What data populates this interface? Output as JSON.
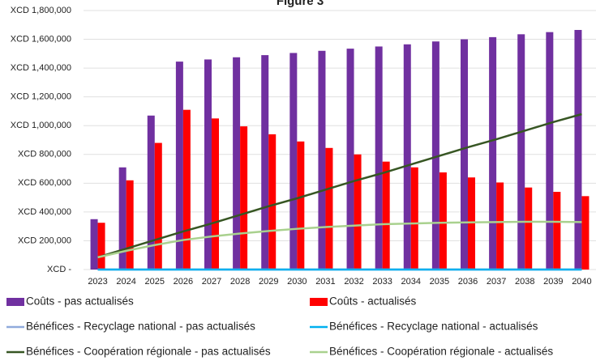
{
  "chart_data": {
    "type": "bar",
    "title": "Figure 3",
    "categories": [
      "2023",
      "2024",
      "2025",
      "2026",
      "2027",
      "2028",
      "2029",
      "2030",
      "2031",
      "2032",
      "2033",
      "2034",
      "2035",
      "2036",
      "2037",
      "2038",
      "2039",
      "2040"
    ],
    "ylim": [
      0,
      1800000
    ],
    "yticks": [
      {
        "value": 0,
        "label": "XCD -"
      },
      {
        "value": 200000,
        "label": "XCD 200,000"
      },
      {
        "value": 400000,
        "label": "XCD 400,000"
      },
      {
        "value": 600000,
        "label": "XCD 600,000"
      },
      {
        "value": 800000,
        "label": "XCD 800,000"
      },
      {
        "value": 1000000,
        "label": "XCD 1,000,000"
      },
      {
        "value": 1200000,
        "label": "XCD 1,200,000"
      },
      {
        "value": 1400000,
        "label": "XCD 1,400,000"
      },
      {
        "value": 1600000,
        "label": "XCD 1,600,000"
      },
      {
        "value": 1800000,
        "label": "XCD 1,800,000"
      }
    ],
    "grid": true,
    "series": [
      {
        "name": "Coûts - pas actualisés",
        "type": "bar",
        "color": "#7030a0",
        "values": [
          350000,
          710000,
          1070000,
          1445000,
          1460000,
          1475000,
          1490000,
          1505000,
          1520000,
          1535000,
          1550000,
          1565000,
          1585000,
          1600000,
          1615000,
          1635000,
          1650000,
          1665000
        ]
      },
      {
        "name": "Coûts - actualisés",
        "type": "bar",
        "color": "#ff0000",
        "values": [
          325000,
          620000,
          880000,
          1110000,
          1050000,
          995000,
          940000,
          890000,
          845000,
          800000,
          750000,
          710000,
          675000,
          640000,
          605000,
          570000,
          540000,
          510000
        ]
      },
      {
        "name": "Bénéfices - Recyclage national - pas actualisés",
        "type": "line",
        "color": "#8faadc",
        "values": [
          0,
          0,
          0,
          0,
          0,
          0,
          0,
          0,
          0,
          0,
          0,
          0,
          0,
          0,
          0,
          0,
          0,
          0
        ]
      },
      {
        "name": "Bénéfices - Recyclage national - actualisés",
        "type": "line",
        "color": "#00b0f0",
        "values": [
          0,
          0,
          0,
          0,
          0,
          0,
          0,
          0,
          0,
          0,
          0,
          0,
          0,
          0,
          0,
          0,
          0,
          0
        ]
      },
      {
        "name": "Bénéfices - Coopération régionale - pas actualisés",
        "type": "line",
        "color": "#375623",
        "values": [
          85000,
          145000,
          205000,
          265000,
          320000,
          380000,
          440000,
          495000,
          555000,
          615000,
          670000,
          730000,
          790000,
          850000,
          905000,
          965000,
          1025000,
          1080000
        ]
      },
      {
        "name": "Bénéfices - Coopération régionale - actualisés",
        "type": "line",
        "color": "#a9d18e",
        "values": [
          85000,
          130000,
          170000,
          205000,
          230000,
          250000,
          268000,
          283000,
          295000,
          305000,
          315000,
          320000,
          325000,
          328000,
          330000,
          332000,
          332000,
          330000
        ]
      }
    ]
  }
}
